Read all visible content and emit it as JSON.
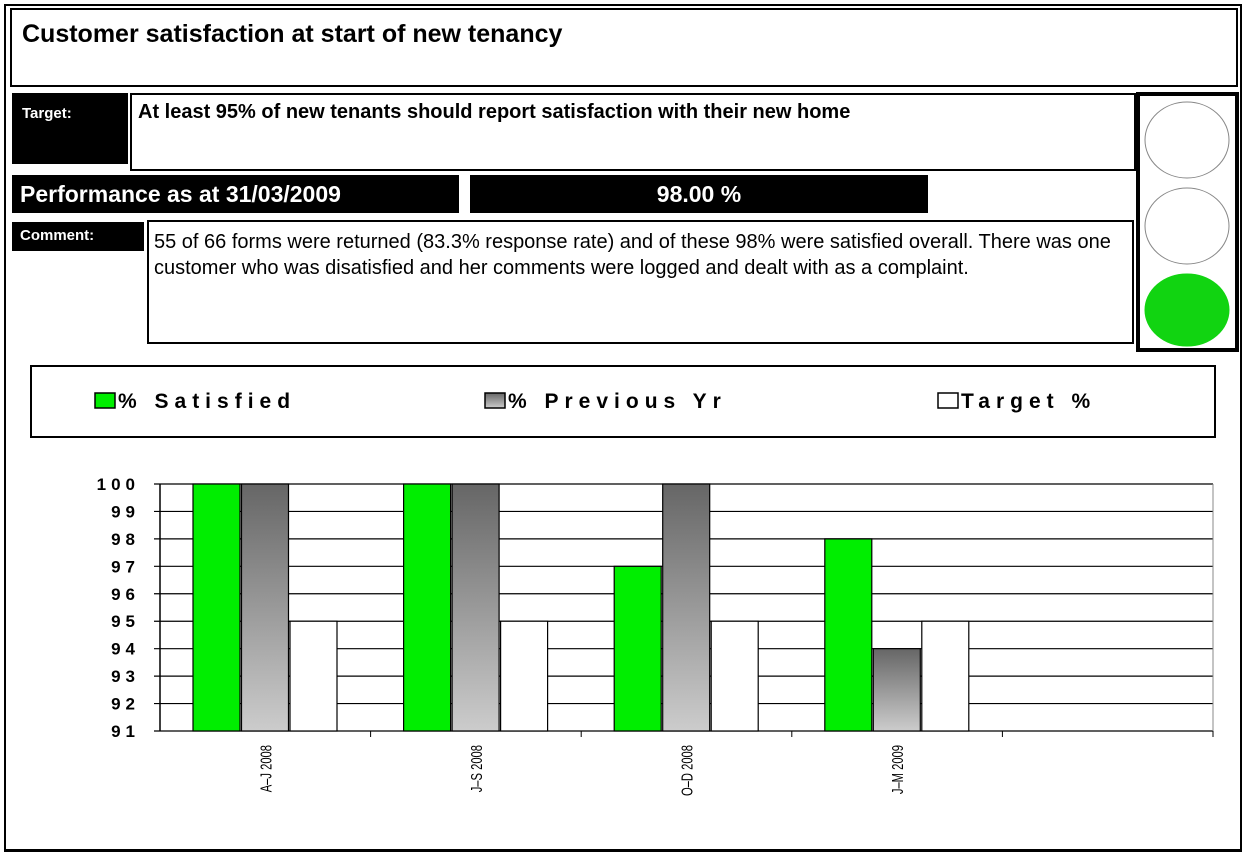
{
  "header": {
    "title": "Customer satisfaction at start of new tenancy",
    "target_label": "Target:",
    "target_text": "At least 95% of new tenants should report satisfaction with their new home",
    "performance_label": "Performance as at 31/03/2009",
    "performance_value": "98.00 %",
    "comment_label": "Comment:",
    "comment_text": "55 of 66 forms were returned (83.3% response rate) and of these 98% were satisfied overall.  There was one customer who was disatisfied and her comments were logged and dealt with as a complaint."
  },
  "chart_data": {
    "type": "bar",
    "categories": [
      "A–J 2008",
      "J–S 2008",
      "O–D 2008",
      "J–M 2009",
      null
    ],
    "series": [
      {
        "name": "% Satisfied",
        "color": "#00ee00",
        "values": [
          100,
          100,
          97,
          98,
          null
        ]
      },
      {
        "name": "% Previous Yr",
        "color": "#666666",
        "values": [
          100,
          100,
          100,
          94,
          null
        ]
      },
      {
        "name": "Target %",
        "color": "#ffffff",
        "values": [
          95,
          95,
          95,
          95,
          null
        ]
      }
    ],
    "ylim": [
      91,
      100
    ],
    "yticks": [
      91,
      92,
      93,
      94,
      95,
      96,
      97,
      98,
      99,
      100
    ],
    "grid": true
  }
}
